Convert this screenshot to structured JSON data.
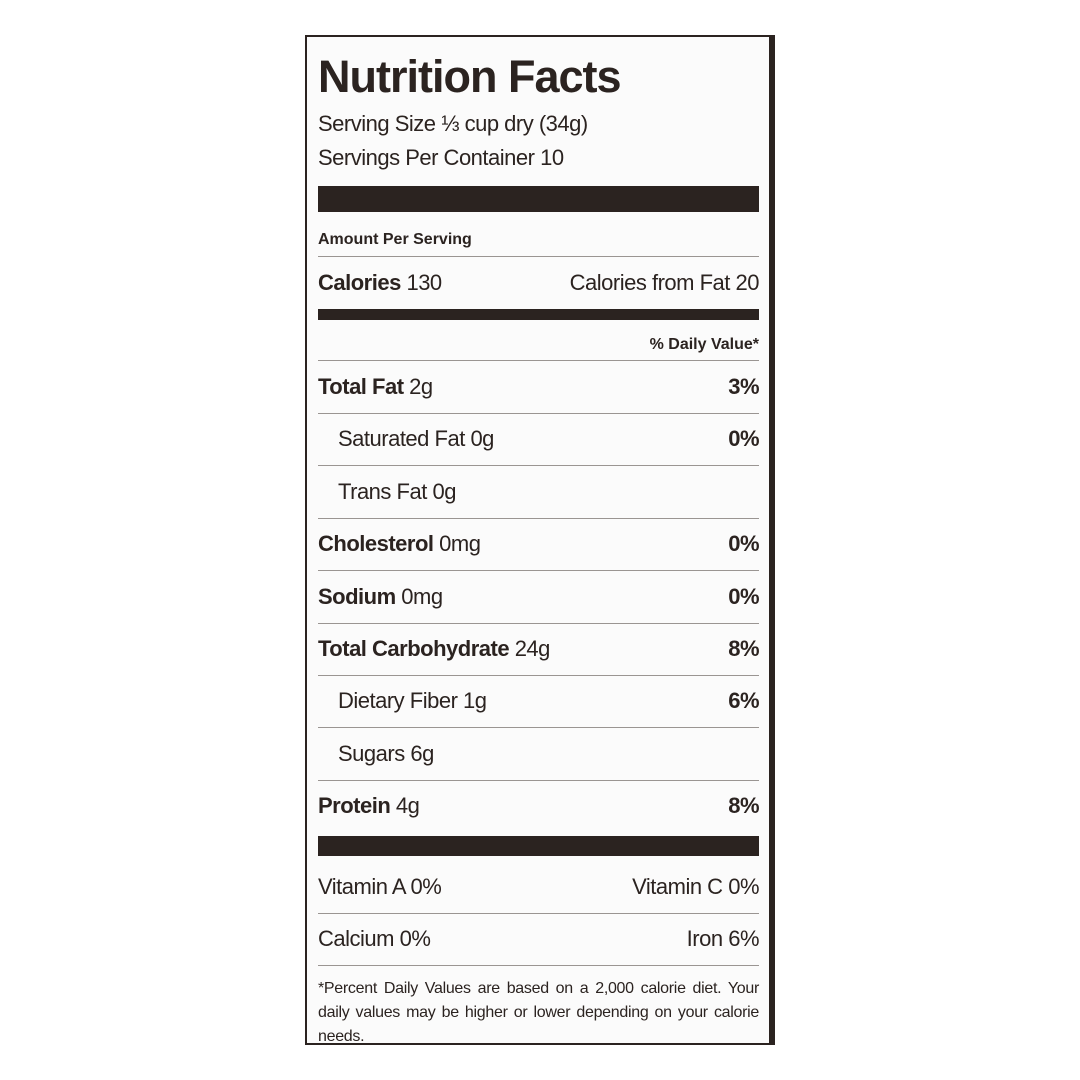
{
  "header": {
    "title": "Nutrition Facts",
    "serving_size_label": "Serving Size",
    "serving_size": "⅓ cup dry (34g)",
    "servings_label": "Servings Per Container",
    "servings": "10"
  },
  "amount_per_serving": "Amount Per Serving",
  "calories": {
    "label": "Calories",
    "value": "130",
    "fat_label": "Calories from Fat",
    "fat_value": "20"
  },
  "daily_value_header": "% Daily Value*",
  "nutrients": [
    {
      "name": "Total Fat",
      "amount": "2g",
      "dv": "3%"
    },
    {
      "name": "Saturated Fat",
      "amount": "0g",
      "dv": "0%"
    },
    {
      "name": "Trans Fat",
      "amount": "0g"
    },
    {
      "name": "Cholesterol",
      "amount": "0mg",
      "dv": "0%"
    },
    {
      "name": "Sodium",
      "amount": "0mg",
      "dv": "0%"
    },
    {
      "name": "Total Carbohydrate",
      "amount": "24g",
      "dv": "8%"
    },
    {
      "name": "Dietary Fiber",
      "amount": "1g",
      "dv": "6%"
    },
    {
      "name": "Sugars",
      "amount": "6g"
    },
    {
      "name": "Protein",
      "amount": "4g",
      "dv": "8%"
    }
  ],
  "vitamins": [
    [
      {
        "name": "Vitamin A",
        "value": "0%"
      },
      {
        "name": "Vitamin C",
        "value": "0%"
      }
    ],
    [
      {
        "name": "Calcium",
        "value": "0%"
      },
      {
        "name": "Iron",
        "value": "6%"
      }
    ]
  ],
  "footnote": "*Percent Daily Values are based on a 2,000 calorie diet. Your daily values may be higher or lower depending on your calorie needs."
}
